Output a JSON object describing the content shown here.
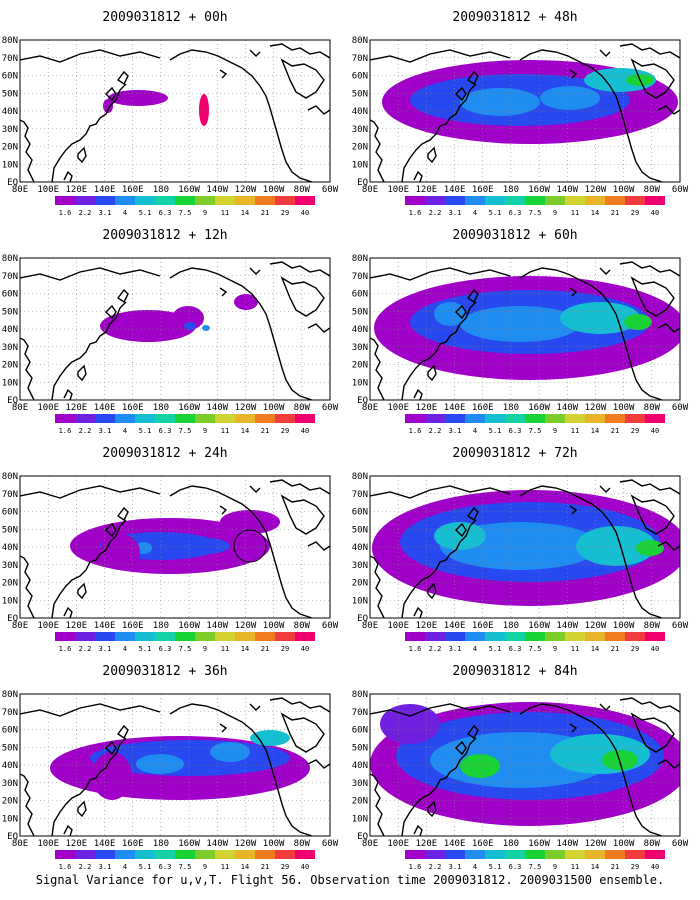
{
  "caption": "Signal Variance for u,v,T. Flight 56. Observation time 2009031812. 2009031500 ensemble.",
  "x_ticks": [
    "80E",
    "100E",
    "120E",
    "140E",
    "160E",
    "180",
    "160W",
    "140W",
    "120W",
    "100W",
    "80W",
    "60W"
  ],
  "y_ticks": [
    "EQ",
    "10N",
    "20N",
    "30N",
    "40N",
    "50N",
    "60N",
    "70N",
    "80N"
  ],
  "colorbar": {
    "labels": [
      "1.6",
      "2.2",
      "3.1",
      "4",
      "5.1",
      "6.3",
      "7.5",
      "9",
      "11",
      "14",
      "21",
      "29",
      "40"
    ],
    "colors": [
      "#a000c8",
      "#7020e0",
      "#2848f0",
      "#1e8cf0",
      "#16bed2",
      "#12d2a6",
      "#18d236",
      "#7ccc2a",
      "#d2d230",
      "#e8b42a",
      "#f07c20",
      "#f03c3c",
      "#f0006e"
    ]
  },
  "panels": [
    {
      "title": "2009031812 + 00h",
      "lead": "00h"
    },
    {
      "title": "2009031812 + 48h",
      "lead": "48h"
    },
    {
      "title": "2009031812 + 12h",
      "lead": "12h"
    },
    {
      "title": "2009031812 + 60h",
      "lead": "60h"
    },
    {
      "title": "2009031812 + 24h",
      "lead": "24h"
    },
    {
      "title": "2009031812 + 72h",
      "lead": "72h"
    },
    {
      "title": "2009031812 + 36h",
      "lead": "36h"
    },
    {
      "title": "2009031812 + 84h",
      "lead": "84h"
    }
  ]
}
